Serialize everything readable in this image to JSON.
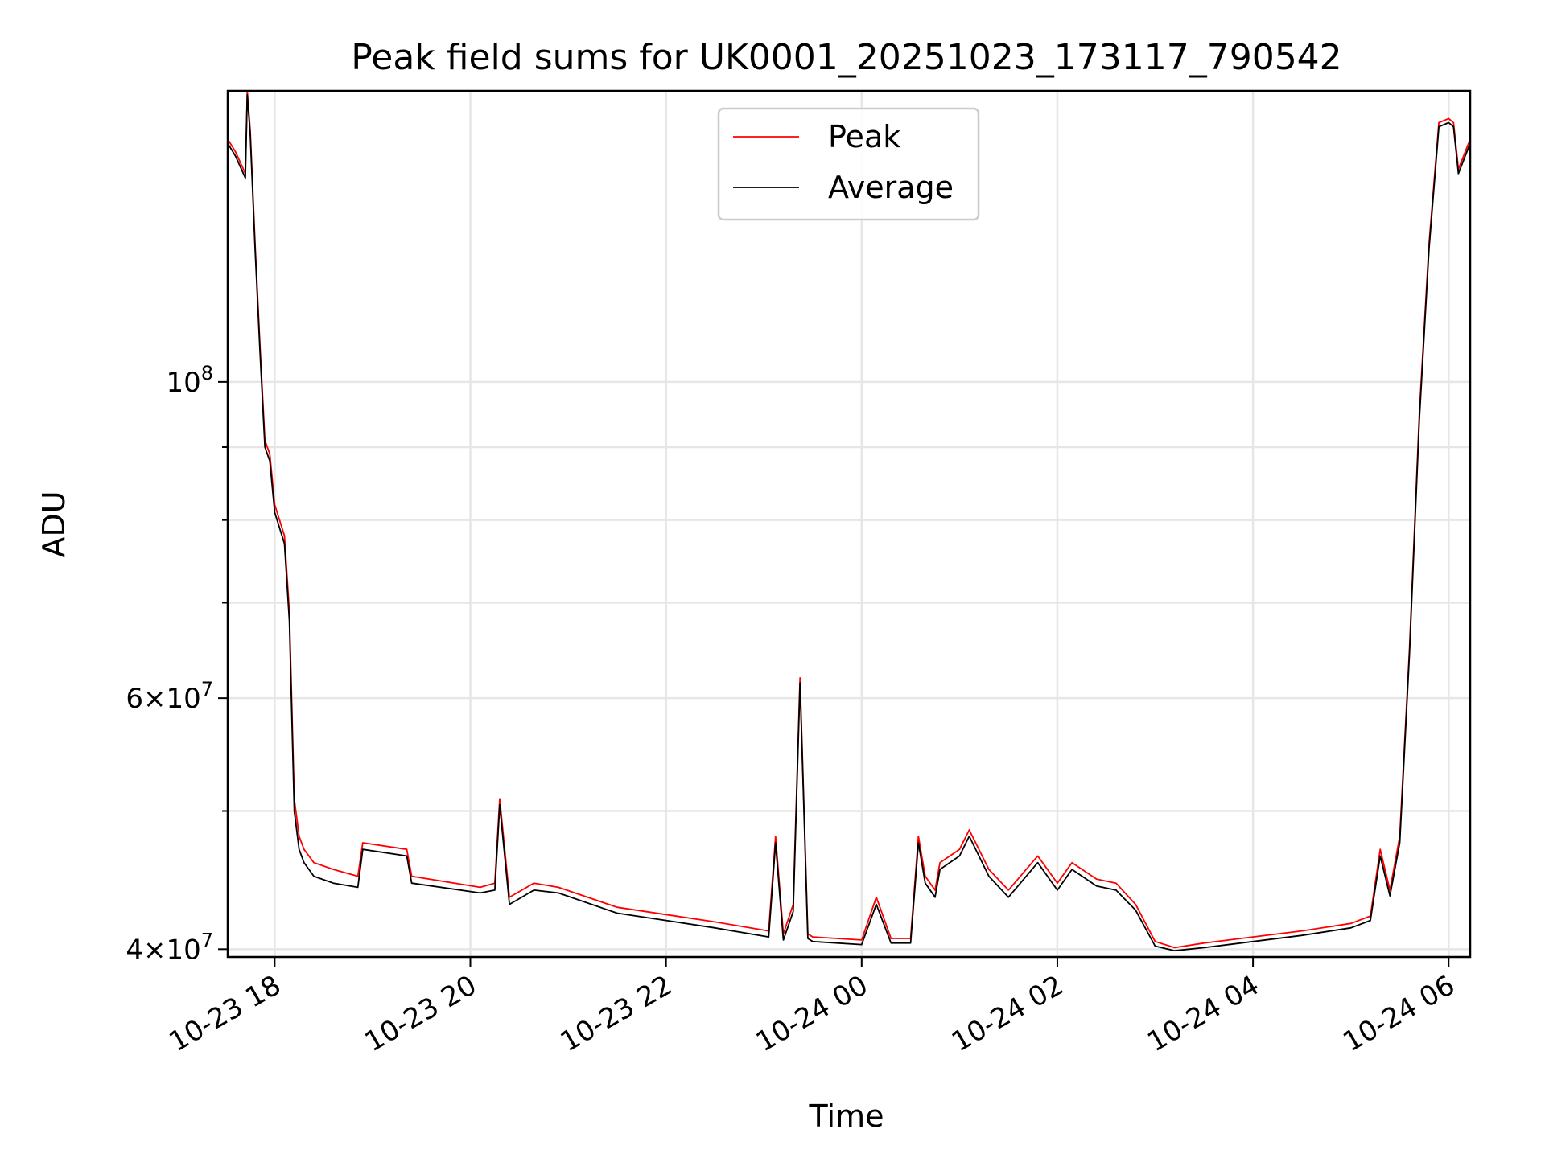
{
  "chart_data": {
    "type": "line",
    "title": "Peak field sums for UK0001_20251023_173117_790542",
    "xlabel": "Time",
    "ylabel": "ADU",
    "yscale": "log",
    "ylim": [
      39500000,
      160000000
    ],
    "xlim_hours": [
      17.52,
      30.22
    ],
    "grid": true,
    "legend_position": "upper center",
    "x_ticks": [
      {
        "hour": 18,
        "label": "10-23 18"
      },
      {
        "hour": 20,
        "label": "10-23 20"
      },
      {
        "hour": 22,
        "label": "10-23 22"
      },
      {
        "hour": 24,
        "label": "10-24 00"
      },
      {
        "hour": 26,
        "label": "10-24 02"
      },
      {
        "hour": 28,
        "label": "10-24 04"
      },
      {
        "hour": 30,
        "label": "10-24 06"
      }
    ],
    "y_major_ticks": [
      {
        "value": 40000000,
        "mantissa": "4",
        "exp": "7"
      },
      {
        "value": 60000000,
        "mantissa": "6",
        "exp": "7"
      },
      {
        "value": 100000000,
        "mantissa": "",
        "exp": "8"
      }
    ],
    "y_minor_ticks": [
      50000000,
      70000000,
      80000000,
      90000000
    ],
    "series": [
      {
        "name": "Peak",
        "color": "#ff0000",
        "x_hours": [
          17.52,
          17.6,
          17.7,
          17.72,
          17.75,
          17.8,
          17.85,
          17.9,
          17.95,
          18.0,
          18.1,
          18.15,
          18.2,
          18.25,
          18.3,
          18.35,
          18.4,
          18.6,
          18.85,
          18.9,
          19.35,
          19.4,
          20.1,
          20.25,
          20.3,
          20.4,
          20.65,
          20.9,
          21.5,
          22.0,
          22.5,
          23.05,
          23.12,
          23.2,
          23.3,
          23.37,
          23.45,
          23.5,
          24.0,
          24.15,
          24.3,
          24.5,
          24.58,
          24.65,
          24.75,
          24.8,
          25.0,
          25.1,
          25.3,
          25.5,
          25.8,
          26.0,
          26.15,
          26.4,
          26.6,
          26.8,
          27.0,
          27.2,
          27.5,
          28.0,
          28.5,
          29.0,
          29.2,
          29.3,
          29.4,
          29.5,
          29.6,
          29.7,
          29.8,
          29.9,
          30.0,
          30.05,
          30.1,
          30.22
        ],
        "values": [
          148000000,
          145000000,
          140000000,
          160000000,
          150000000,
          125000000,
          106000000,
          91000000,
          89000000,
          82000000,
          78000000,
          69000000,
          51000000,
          48000000,
          47000000,
          46500000,
          46000000,
          45500000,
          45000000,
          47500000,
          47000000,
          45000000,
          44200000,
          44500000,
          51000000,
          43500000,
          44500000,
          44200000,
          42800000,
          42300000,
          41800000,
          41200000,
          48000000,
          41000000,
          43000000,
          62000000,
          41000000,
          40800000,
          40600000,
          43500000,
          40700000,
          40700000,
          48000000,
          45000000,
          44000000,
          46000000,
          47000000,
          48500000,
          45500000,
          44000000,
          46500000,
          44500000,
          46000000,
          44800000,
          44500000,
          43000000,
          40500000,
          40100000,
          40400000,
          40800000,
          41200000,
          41700000,
          42200000,
          47000000,
          44000000,
          48000000,
          65000000,
          95000000,
          125000000,
          152000000,
          153000000,
          152000000,
          141000000,
          148000000
        ]
      },
      {
        "name": "Average",
        "color": "#000000",
        "x_hours": [
          17.52,
          17.6,
          17.7,
          17.72,
          17.75,
          17.8,
          17.85,
          17.9,
          17.95,
          18.0,
          18.1,
          18.15,
          18.2,
          18.25,
          18.3,
          18.35,
          18.4,
          18.6,
          18.85,
          18.9,
          19.35,
          19.4,
          20.1,
          20.25,
          20.3,
          20.4,
          20.65,
          20.9,
          21.5,
          22.0,
          22.5,
          23.05,
          23.12,
          23.2,
          23.3,
          23.37,
          23.45,
          23.5,
          24.0,
          24.15,
          24.3,
          24.5,
          24.58,
          24.65,
          24.75,
          24.8,
          25.0,
          25.1,
          25.3,
          25.5,
          25.8,
          26.0,
          26.15,
          26.4,
          26.6,
          26.8,
          27.0,
          27.2,
          27.5,
          28.0,
          28.5,
          29.0,
          29.2,
          29.3,
          29.4,
          29.5,
          29.6,
          29.7,
          29.8,
          29.9,
          30.0,
          30.05,
          30.1,
          30.22
        ],
        "values": [
          147000000,
          144000000,
          139000000,
          159000000,
          149000000,
          124000000,
          105000000,
          90000000,
          88000000,
          81000000,
          77000000,
          68000000,
          50000000,
          47000000,
          46000000,
          45500000,
          45000000,
          44500000,
          44200000,
          47000000,
          46500000,
          44500000,
          43800000,
          44000000,
          50500000,
          43000000,
          44000000,
          43800000,
          42400000,
          41900000,
          41400000,
          40800000,
          47500000,
          40600000,
          42500000,
          61500000,
          40700000,
          40500000,
          40300000,
          43000000,
          40400000,
          40400000,
          47500000,
          44500000,
          43500000,
          45500000,
          46500000,
          48000000,
          45000000,
          43500000,
          46000000,
          44000000,
          45500000,
          44300000,
          44000000,
          42600000,
          40200000,
          39900000,
          40100000,
          40500000,
          40900000,
          41400000,
          41900000,
          46500000,
          43600000,
          47500000,
          64500000,
          94000000,
          124000000,
          151000000,
          152000000,
          151000000,
          140000000,
          147000000
        ]
      }
    ]
  }
}
